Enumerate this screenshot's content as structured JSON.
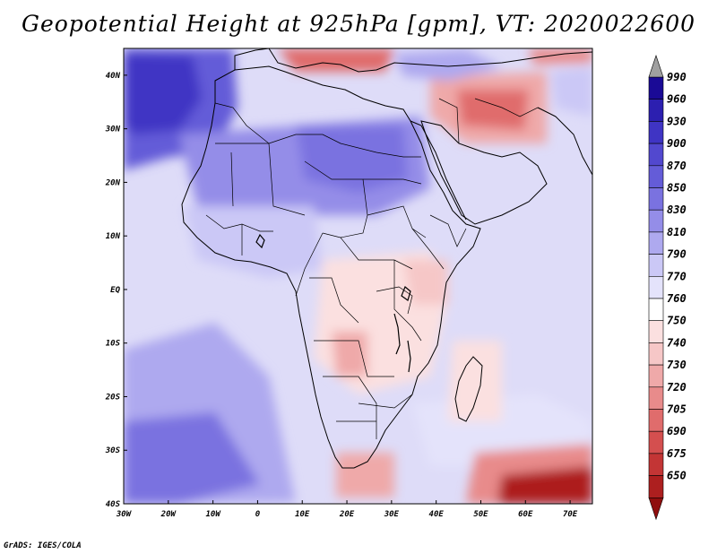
{
  "title": "Geopotential Height at 925hPa [gpm], VT: 2020022600",
  "footer": "GrADS: IGES/COLA",
  "chart_data": {
    "type": "heatmap",
    "variable": "Geopotential Height",
    "level": "925hPa",
    "units": "gpm",
    "valid_time": "2020022600",
    "lon_range": [
      -30,
      75
    ],
    "lat_range": [
      -40,
      45
    ],
    "x_ticks": [
      "30W",
      "20W",
      "10W",
      "0",
      "10E",
      "20E",
      "30E",
      "40E",
      "50E",
      "60E",
      "70E"
    ],
    "y_ticks": [
      "40N",
      "30N",
      "20N",
      "10N",
      "EQ",
      "10S",
      "20S",
      "30S",
      "40S"
    ],
    "colorbar_levels": [
      990,
      960,
      930,
      900,
      870,
      850,
      830,
      810,
      790,
      770,
      760,
      750,
      740,
      730,
      720,
      705,
      690,
      675,
      650
    ],
    "colors": {
      "c1": "#1a0a96",
      "c2": "#2c1fb0",
      "c3": "#3f34c4",
      "c4": "#5248cf",
      "c5": "#645cd8",
      "c6": "#7a72e0",
      "c7": "#948de8",
      "c8": "#aea9ef",
      "c9": "#cbc8f6",
      "c10": "#e4e3fb",
      "c11": "#ffffff",
      "c12": "#fbe0e0",
      "c13": "#f6c7c7",
      "c14": "#efa9a9",
      "c15": "#e88b8b",
      "c16": "#e06c6c",
      "c17": "#d44f4f",
      "c18": "#c33535",
      "c19": "#ad1f1f",
      "c20": "#8f0e0e",
      "map_bg": "#dedcf8",
      "land_lines": "#000000"
    }
  }
}
